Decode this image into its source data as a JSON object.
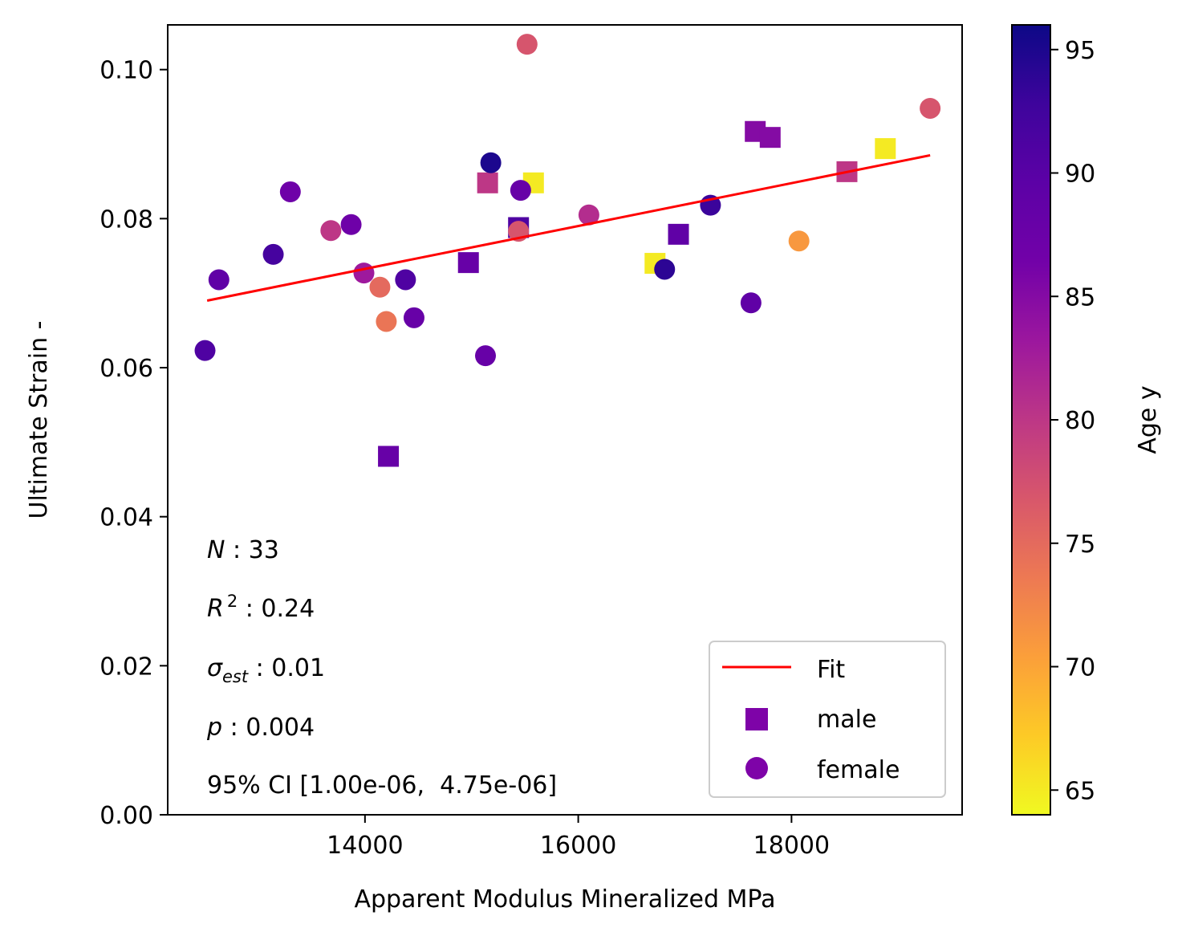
{
  "chart_data": {
    "type": "scatter",
    "xlabel": "Apparent Modulus Mineralized MPa",
    "ylabel": "Ultimate Strain -",
    "xlim": [
      12150,
      19600
    ],
    "ylim": [
      0,
      0.106
    ],
    "xticks": [
      14000,
      16000,
      18000
    ],
    "yticks": [
      0.0,
      0.02,
      0.04,
      0.06,
      0.08,
      0.1
    ],
    "xtick_labels": [
      "14000",
      "16000",
      "18000"
    ],
    "ytick_labels": [
      "0.00",
      "0.02",
      "0.04",
      "0.06",
      "0.08",
      "0.10"
    ],
    "grid": false,
    "legend_position": "lower right",
    "legend": [
      {
        "label": "Fit",
        "kind": "line",
        "color": "#ff0000"
      },
      {
        "label": "male",
        "kind": "square",
        "color": "#7e03a8"
      },
      {
        "label": "female",
        "kind": "circle",
        "color": "#7e03a8"
      }
    ],
    "fit": {
      "x": [
        12520,
        19300
      ],
      "y": [
        0.069,
        0.0885
      ],
      "color": "#ff0000"
    },
    "colorbar": {
      "label": "Age y",
      "range": [
        64,
        96
      ],
      "ticks": [
        65,
        70,
        75,
        80,
        85,
        90,
        95
      ],
      "tick_labels": [
        "65",
        "70",
        "75",
        "80",
        "85",
        "90",
        "95"
      ],
      "colormap": "plasma"
    },
    "stats": {
      "n_label": "N",
      "n_value": " : 33",
      "r2_label": "R",
      "r2_sup": "2",
      "r2_value": " : 0.24",
      "sigma_label": "σ",
      "sigma_sub": "est",
      "sigma_value": " : 0.01",
      "p_label": "p",
      "p_value": " : 0.004",
      "ci_text": "95% CI [1.00e-06,  4.75e-06]"
    },
    "series": [
      {
        "name": "male",
        "marker": "square",
        "points": [
          {
            "x": 14220,
            "y": 0.0481,
            "age": 88
          },
          {
            "x": 14970,
            "y": 0.0741,
            "age": 88
          },
          {
            "x": 15150,
            "y": 0.0848,
            "age": 80
          },
          {
            "x": 15440,
            "y": 0.0788,
            "age": 91
          },
          {
            "x": 15580,
            "y": 0.0848,
            "age": 65
          },
          {
            "x": 16720,
            "y": 0.074,
            "age": 65
          },
          {
            "x": 16940,
            "y": 0.0779,
            "age": 89
          },
          {
            "x": 17660,
            "y": 0.0917,
            "age": 85
          },
          {
            "x": 17800,
            "y": 0.0909,
            "age": 85
          },
          {
            "x": 18520,
            "y": 0.0863,
            "age": 80
          },
          {
            "x": 18880,
            "y": 0.0894,
            "age": 65
          }
        ]
      },
      {
        "name": "female",
        "marker": "circle",
        "points": [
          {
            "x": 12500,
            "y": 0.0623,
            "age": 91
          },
          {
            "x": 12630,
            "y": 0.0718,
            "age": 89
          },
          {
            "x": 13140,
            "y": 0.0752,
            "age": 92
          },
          {
            "x": 13300,
            "y": 0.0836,
            "age": 87
          },
          {
            "x": 13680,
            "y": 0.0784,
            "age": 80
          },
          {
            "x": 13870,
            "y": 0.0792,
            "age": 87
          },
          {
            "x": 13990,
            "y": 0.0727,
            "age": 83
          },
          {
            "x": 14140,
            "y": 0.0708,
            "age": 75
          },
          {
            "x": 14200,
            "y": 0.0662,
            "age": 74
          },
          {
            "x": 14380,
            "y": 0.0718,
            "age": 91
          },
          {
            "x": 14460,
            "y": 0.0667,
            "age": 88
          },
          {
            "x": 15130,
            "y": 0.0616,
            "age": 88
          },
          {
            "x": 15180,
            "y": 0.0875,
            "age": 95
          },
          {
            "x": 15440,
            "y": 0.0783,
            "age": 77
          },
          {
            "x": 15460,
            "y": 0.0838,
            "age": 88
          },
          {
            "x": 15520,
            "y": 0.1034,
            "age": 77
          },
          {
            "x": 16100,
            "y": 0.0805,
            "age": 81
          },
          {
            "x": 16810,
            "y": 0.0732,
            "age": 94
          },
          {
            "x": 17240,
            "y": 0.0818,
            "age": 93
          },
          {
            "x": 17620,
            "y": 0.0687,
            "age": 89
          },
          {
            "x": 18070,
            "y": 0.077,
            "age": 71
          },
          {
            "x": 19300,
            "y": 0.0948,
            "age": 77
          }
        ]
      }
    ]
  }
}
